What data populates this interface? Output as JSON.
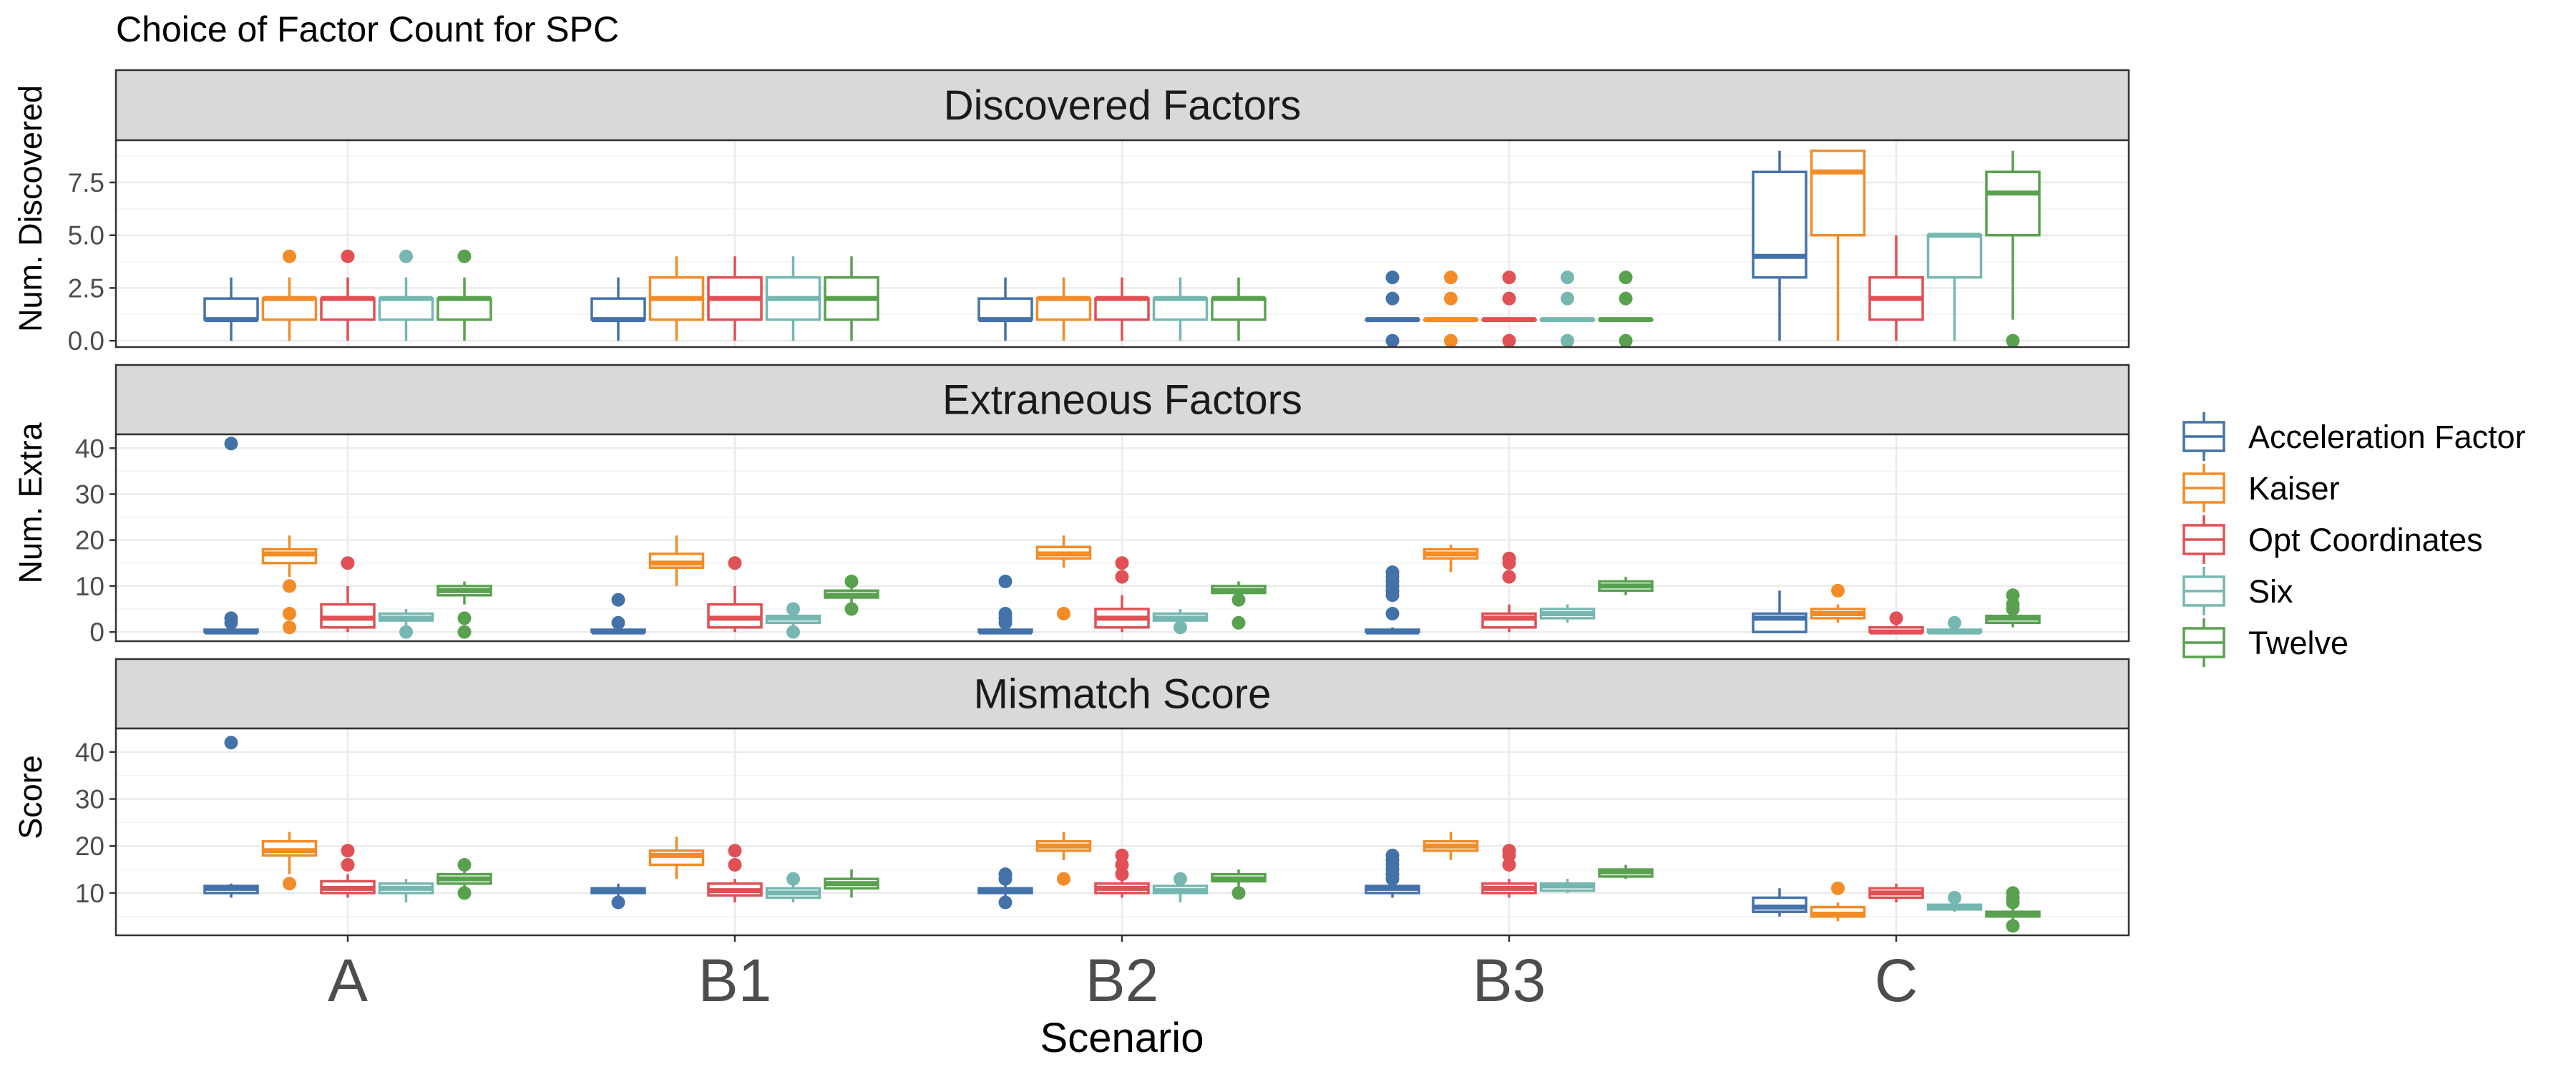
{
  "chart_data": {
    "type": "boxplot",
    "title": "Choice of Factor Count for SPC",
    "xlabel": "Scenario",
    "categories": [
      "A",
      "B1",
      "B2",
      "B3",
      "C"
    ],
    "legend": {
      "placement": "right",
      "entries": [
        "Acceleration Factor",
        "Kaiser",
        "Opt Coordinates",
        "Six",
        "Twelve"
      ]
    },
    "series_colors": {
      "Acceleration Factor": "#4472A8",
      "Kaiser": "#F28C28",
      "Opt Coordinates": "#E05055",
      "Six": "#76B7B2",
      "Twelve": "#59A14F"
    },
    "grid": true,
    "panels": [
      {
        "strip": "Discovered Factors",
        "ylabel": "Num. Discovered",
        "ylim": [
          -0.3,
          9.5
        ],
        "yticks": [
          0.0,
          2.5,
          5.0,
          7.5
        ],
        "ytick_labels": [
          "0.0",
          "2.5",
          "5.0",
          "7.5"
        ],
        "boxes": [
          [
            {
              "q1": 1,
              "median": 1,
              "q3": 2,
              "lo": 0,
              "hi": 3,
              "outliers": []
            },
            {
              "q1": 1,
              "median": 2,
              "q3": 2,
              "lo": 0,
              "hi": 3,
              "outliers": [
                4
              ]
            },
            {
              "q1": 1,
              "median": 2,
              "q3": 2,
              "lo": 0,
              "hi": 3,
              "outliers": [
                4
              ]
            },
            {
              "q1": 1,
              "median": 2,
              "q3": 2,
              "lo": 0,
              "hi": 3,
              "outliers": [
                4
              ]
            },
            {
              "q1": 1,
              "median": 2,
              "q3": 2,
              "lo": 0,
              "hi": 3,
              "outliers": [
                4
              ]
            }
          ],
          [
            {
              "q1": 1,
              "median": 1,
              "q3": 2,
              "lo": 0,
              "hi": 3,
              "outliers": []
            },
            {
              "q1": 1,
              "median": 2,
              "q3": 3,
              "lo": 0,
              "hi": 4,
              "outliers": []
            },
            {
              "q1": 1,
              "median": 2,
              "q3": 3,
              "lo": 0,
              "hi": 4,
              "outliers": []
            },
            {
              "q1": 1,
              "median": 2,
              "q3": 3,
              "lo": 0,
              "hi": 4,
              "outliers": []
            },
            {
              "q1": 1,
              "median": 2,
              "q3": 3,
              "lo": 0,
              "hi": 4,
              "outliers": []
            }
          ],
          [
            {
              "q1": 1,
              "median": 1,
              "q3": 2,
              "lo": 0,
              "hi": 3,
              "outliers": []
            },
            {
              "q1": 1,
              "median": 2,
              "q3": 2,
              "lo": 0,
              "hi": 3,
              "outliers": []
            },
            {
              "q1": 1,
              "median": 2,
              "q3": 2,
              "lo": 0,
              "hi": 3,
              "outliers": []
            },
            {
              "q1": 1,
              "median": 2,
              "q3": 2,
              "lo": 0,
              "hi": 3,
              "outliers": []
            },
            {
              "q1": 1,
              "median": 2,
              "q3": 2,
              "lo": 0,
              "hi": 3,
              "outliers": []
            }
          ],
          [
            {
              "q1": 1,
              "median": 1,
              "q3": 1,
              "lo": 1,
              "hi": 1,
              "outliers": [
                0,
                2,
                3
              ]
            },
            {
              "q1": 1,
              "median": 1,
              "q3": 1,
              "lo": 1,
              "hi": 1,
              "outliers": [
                0,
                2,
                3
              ]
            },
            {
              "q1": 1,
              "median": 1,
              "q3": 1,
              "lo": 1,
              "hi": 1,
              "outliers": [
                0,
                2,
                3
              ]
            },
            {
              "q1": 1,
              "median": 1,
              "q3": 1,
              "lo": 1,
              "hi": 1,
              "outliers": [
                0,
                2,
                3
              ]
            },
            {
              "q1": 1,
              "median": 1,
              "q3": 1,
              "lo": 1,
              "hi": 1,
              "outliers": [
                0,
                2,
                3
              ]
            }
          ],
          [
            {
              "q1": 3,
              "median": 4,
              "q3": 8,
              "lo": 0,
              "hi": 9,
              "outliers": []
            },
            {
              "q1": 5,
              "median": 8,
              "q3": 9,
              "lo": 0,
              "hi": 9,
              "outliers": []
            },
            {
              "q1": 1,
              "median": 2,
              "q3": 3,
              "lo": 0,
              "hi": 5,
              "outliers": []
            },
            {
              "q1": 3,
              "median": 5,
              "q3": 5,
              "lo": 0,
              "hi": 5,
              "outliers": []
            },
            {
              "q1": 5,
              "median": 7,
              "q3": 8,
              "lo": 1,
              "hi": 9,
              "outliers": [
                0
              ]
            }
          ]
        ]
      },
      {
        "strip": "Extraneous Factors",
        "ylabel": "Num. Extra",
        "ylim": [
          -2,
          43
        ],
        "yticks": [
          0,
          10,
          20,
          30,
          40
        ],
        "ytick_labels": [
          "0",
          "10",
          "20",
          "30",
          "40"
        ],
        "boxes": [
          [
            {
              "q1": 0,
              "median": 0,
              "q3": 0.5,
              "lo": 0,
              "hi": 1,
              "outliers": [
                2,
                3,
                41
              ]
            },
            {
              "q1": 15,
              "median": 17,
              "q3": 18,
              "lo": 12,
              "hi": 21,
              "outliers": [
                10,
                4,
                1
              ]
            },
            {
              "q1": 1,
              "median": 3,
              "q3": 6,
              "lo": 0,
              "hi": 10,
              "outliers": [
                15
              ]
            },
            {
              "q1": 2.5,
              "median": 3,
              "q3": 4,
              "lo": 1,
              "hi": 5,
              "outliers": [
                0
              ]
            },
            {
              "q1": 8,
              "median": 9,
              "q3": 10,
              "lo": 6,
              "hi": 11,
              "outliers": [
                3,
                0
              ]
            }
          ],
          [
            {
              "q1": 0,
              "median": 0,
              "q3": 0.5,
              "lo": 0,
              "hi": 1,
              "outliers": [
                2,
                7
              ]
            },
            {
              "q1": 14,
              "median": 15,
              "q3": 17,
              "lo": 10,
              "hi": 21,
              "outliers": []
            },
            {
              "q1": 1,
              "median": 3,
              "q3": 6,
              "lo": 0,
              "hi": 10,
              "outliers": [
                15
              ]
            },
            {
              "q1": 2,
              "median": 3,
              "q3": 3.5,
              "lo": 1,
              "hi": 5,
              "outliers": [
                0,
                5
              ]
            },
            {
              "q1": 7.5,
              "median": 8,
              "q3": 9,
              "lo": 6,
              "hi": 10,
              "outliers": [
                11,
                5
              ]
            }
          ],
          [
            {
              "q1": 0,
              "median": 0,
              "q3": 0.5,
              "lo": 0,
              "hi": 1,
              "outliers": [
                2,
                3,
                4,
                11
              ]
            },
            {
              "q1": 16,
              "median": 17,
              "q3": 18.5,
              "lo": 14,
              "hi": 21,
              "outliers": [
                4
              ]
            },
            {
              "q1": 1,
              "median": 3,
              "q3": 5,
              "lo": 0,
              "hi": 8,
              "outliers": [
                12,
                15
              ]
            },
            {
              "q1": 2.5,
              "median": 3,
              "q3": 4,
              "lo": 1,
              "hi": 5,
              "outliers": [
                1
              ]
            },
            {
              "q1": 8.5,
              "median": 9,
              "q3": 10,
              "lo": 7,
              "hi": 11,
              "outliers": [
                7,
                2
              ]
            }
          ],
          [
            {
              "q1": 0,
              "median": 0,
              "q3": 0.5,
              "lo": 0,
              "hi": 1,
              "outliers": [
                4,
                8,
                9,
                10,
                11,
                12,
                13
              ]
            },
            {
              "q1": 16,
              "median": 17,
              "q3": 18,
              "lo": 13,
              "hi": 19,
              "outliers": []
            },
            {
              "q1": 1,
              "median": 3,
              "q3": 4,
              "lo": 0,
              "hi": 6,
              "outliers": [
                12,
                15,
                16
              ]
            },
            {
              "q1": 3,
              "median": 4,
              "q3": 5,
              "lo": 2,
              "hi": 6,
              "outliers": []
            },
            {
              "q1": 9,
              "median": 10,
              "q3": 11,
              "lo": 8,
              "hi": 12,
              "outliers": []
            }
          ],
          [
            {
              "q1": 0,
              "median": 3,
              "q3": 4,
              "lo": 0,
              "hi": 9,
              "outliers": []
            },
            {
              "q1": 3,
              "median": 4,
              "q3": 5,
              "lo": 2,
              "hi": 6,
              "outliers": [
                9
              ]
            },
            {
              "q1": 0,
              "median": 0,
              "q3": 1,
              "lo": 0,
              "hi": 2,
              "outliers": [
                3
              ]
            },
            {
              "q1": 0,
              "median": 0,
              "q3": 0.5,
              "lo": 0,
              "hi": 1,
              "outliers": [
                2
              ]
            },
            {
              "q1": 2,
              "median": 3,
              "q3": 3.5,
              "lo": 1,
              "hi": 4,
              "outliers": [
                5,
                6,
                8
              ]
            }
          ]
        ]
      },
      {
        "strip": "Mismatch Score",
        "ylabel": "Score",
        "ylim": [
          1,
          45
        ],
        "yticks": [
          10,
          20,
          30,
          40
        ],
        "ytick_labels": [
          "10",
          "20",
          "30",
          "40"
        ],
        "boxes": [
          [
            {
              "q1": 10,
              "median": 11,
              "q3": 11.5,
              "lo": 9,
              "hi": 12,
              "outliers": [
                42
              ]
            },
            {
              "q1": 18,
              "median": 19,
              "q3": 21,
              "lo": 14,
              "hi": 23,
              "outliers": [
                12
              ]
            },
            {
              "q1": 10,
              "median": 11,
              "q3": 12.5,
              "lo": 9,
              "hi": 14,
              "outliers": [
                16,
                19
              ]
            },
            {
              "q1": 10,
              "median": 11,
              "q3": 12,
              "lo": 8,
              "hi": 13,
              "outliers": []
            },
            {
              "q1": 12,
              "median": 13,
              "q3": 14,
              "lo": 11,
              "hi": 15,
              "outliers": [
                10,
                16
              ]
            }
          ],
          [
            {
              "q1": 10,
              "median": 10.5,
              "q3": 11,
              "lo": 9,
              "hi": 12,
              "outliers": [
                8
              ]
            },
            {
              "q1": 16,
              "median": 18,
              "q3": 19,
              "lo": 13,
              "hi": 22,
              "outliers": []
            },
            {
              "q1": 9.5,
              "median": 10.5,
              "q3": 12,
              "lo": 8,
              "hi": 13,
              "outliers": [
                16,
                19
              ]
            },
            {
              "q1": 9,
              "median": 10,
              "q3": 11,
              "lo": 8,
              "hi": 12,
              "outliers": [
                13
              ]
            },
            {
              "q1": 11,
              "median": 12,
              "q3": 13,
              "lo": 9,
              "hi": 15,
              "outliers": []
            }
          ],
          [
            {
              "q1": 10,
              "median": 10.5,
              "q3": 11,
              "lo": 9,
              "hi": 12,
              "outliers": [
                8,
                13,
                14
              ]
            },
            {
              "q1": 19,
              "median": 20,
              "q3": 21,
              "lo": 17,
              "hi": 23,
              "outliers": [
                13
              ]
            },
            {
              "q1": 10,
              "median": 11,
              "q3": 12,
              "lo": 9,
              "hi": 13,
              "outliers": [
                14,
                16,
                18
              ]
            },
            {
              "q1": 10,
              "median": 10.5,
              "q3": 11.5,
              "lo": 8,
              "hi": 12,
              "outliers": [
                13
              ]
            },
            {
              "q1": 12.5,
              "median": 13,
              "q3": 14,
              "lo": 11,
              "hi": 15,
              "outliers": [
                10
              ]
            }
          ],
          [
            {
              "q1": 10,
              "median": 11,
              "q3": 11.5,
              "lo": 9,
              "hi": 12,
              "outliers": [
                13,
                14,
                15,
                16,
                17,
                18
              ]
            },
            {
              "q1": 19,
              "median": 20,
              "q3": 21,
              "lo": 17,
              "hi": 23,
              "outliers": []
            },
            {
              "q1": 10,
              "median": 11,
              "q3": 12,
              "lo": 9,
              "hi": 13,
              "outliers": [
                16,
                18,
                19
              ]
            },
            {
              "q1": 10.5,
              "median": 11.5,
              "q3": 12,
              "lo": 10,
              "hi": 13,
              "outliers": []
            },
            {
              "q1": 13.5,
              "median": 14.5,
              "q3": 15,
              "lo": 13,
              "hi": 16,
              "outliers": []
            }
          ],
          [
            {
              "q1": 6,
              "median": 7,
              "q3": 9,
              "lo": 5,
              "hi": 11,
              "outliers": []
            },
            {
              "q1": 5,
              "median": 5.5,
              "q3": 7,
              "lo": 4,
              "hi": 8,
              "outliers": [
                11
              ]
            },
            {
              "q1": 9,
              "median": 10,
              "q3": 11,
              "lo": 8,
              "hi": 12,
              "outliers": []
            },
            {
              "q1": 6.5,
              "median": 7,
              "q3": 7.5,
              "lo": 6,
              "hi": 8,
              "outliers": [
                9
              ]
            },
            {
              "q1": 5,
              "median": 5.5,
              "q3": 6,
              "lo": 4,
              "hi": 7,
              "outliers": [
                3,
                8,
                9,
                10
              ]
            }
          ]
        ]
      }
    ]
  }
}
